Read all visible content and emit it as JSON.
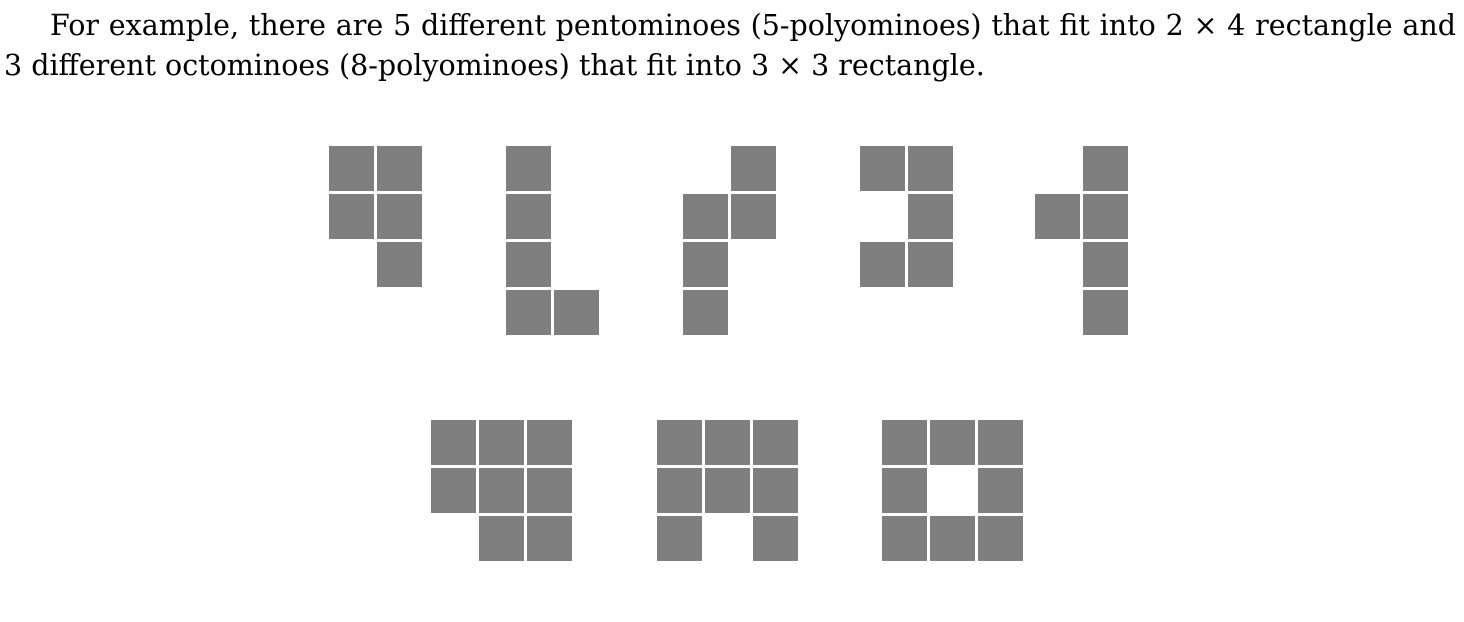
{
  "text": {
    "segments": [
      "For example, there are 5 different pentominoes (5-polyominoes) that fit into ",
      "2 × 4",
      " rectangle and ",
      "3",
      " different octominoes (8-polyominoes) that fit into ",
      "3 × 3",
      " rectangle."
    ]
  },
  "colors": {
    "cell": "#7f7f7f",
    "gap": "#ffffff"
  },
  "figure": {
    "pentominoes": [
      [
        [
          0,
          0
        ],
        [
          1,
          0
        ],
        [
          0,
          1
        ],
        [
          1,
          1
        ],
        [
          1,
          2
        ]
      ],
      [
        [
          0,
          0
        ],
        [
          0,
          1
        ],
        [
          0,
          2
        ],
        [
          0,
          3
        ],
        [
          1,
          3
        ]
      ],
      [
        [
          1,
          0
        ],
        [
          0,
          1
        ],
        [
          1,
          1
        ],
        [
          0,
          2
        ],
        [
          0,
          3
        ]
      ],
      [
        [
          0,
          0
        ],
        [
          1,
          0
        ],
        [
          1,
          1
        ],
        [
          0,
          2
        ],
        [
          1,
          2
        ]
      ],
      [
        [
          1,
          0
        ],
        [
          0,
          1
        ],
        [
          1,
          1
        ],
        [
          1,
          2
        ],
        [
          1,
          3
        ]
      ]
    ],
    "octominoes": [
      [
        [
          0,
          0
        ],
        [
          1,
          0
        ],
        [
          2,
          0
        ],
        [
          0,
          1
        ],
        [
          1,
          1
        ],
        [
          2,
          1
        ],
        [
          1,
          2
        ],
        [
          2,
          2
        ]
      ],
      [
        [
          0,
          0
        ],
        [
          1,
          0
        ],
        [
          2,
          0
        ],
        [
          0,
          1
        ],
        [
          1,
          1
        ],
        [
          2,
          1
        ],
        [
          0,
          2
        ],
        [
          2,
          2
        ]
      ],
      [
        [
          0,
          0
        ],
        [
          1,
          0
        ],
        [
          2,
          0
        ],
        [
          0,
          1
        ],
        [
          2,
          1
        ],
        [
          0,
          2
        ],
        [
          1,
          2
        ],
        [
          2,
          2
        ]
      ]
    ]
  }
}
